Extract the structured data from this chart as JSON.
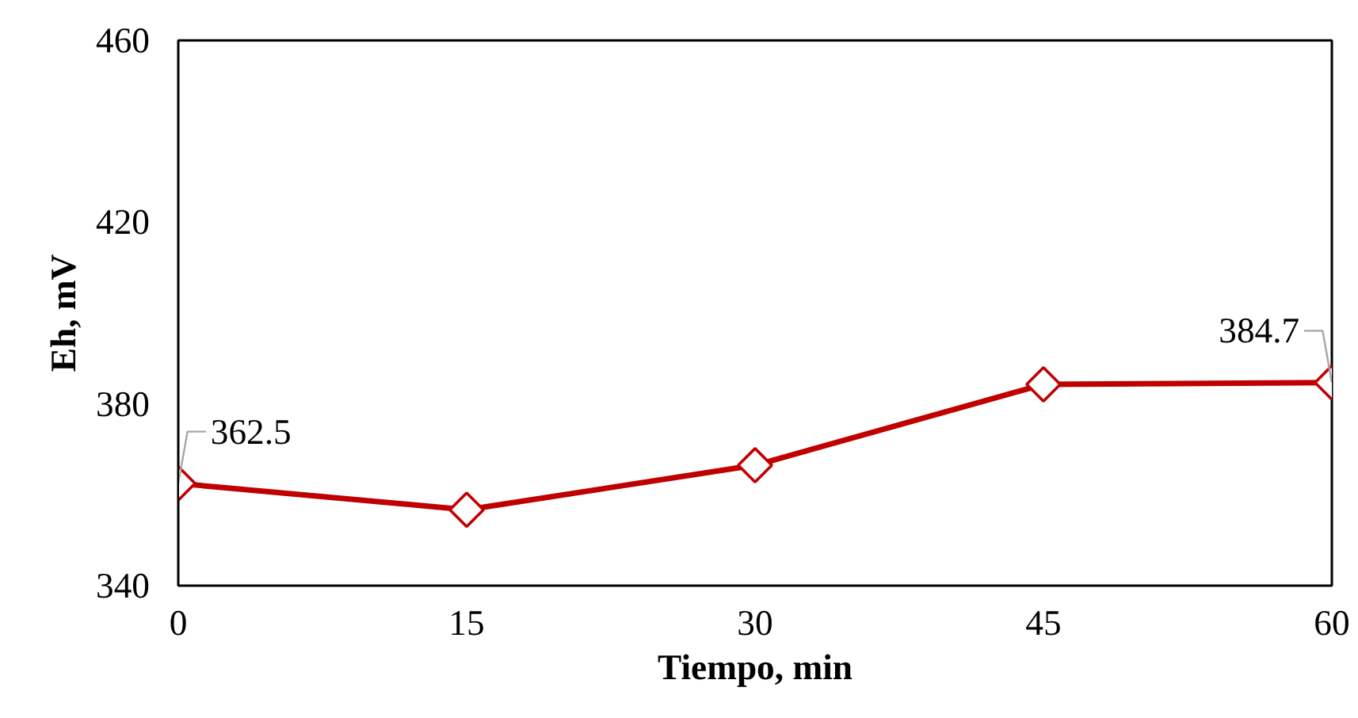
{
  "chart_data": {
    "type": "line",
    "xlabel": "Tiempo, min",
    "ylabel": "Eh, mV",
    "x": [
      0,
      15,
      30,
      45,
      60
    ],
    "series": [
      {
        "color": "#c00000",
        "values": [
          362.5,
          356.7,
          366.5,
          384.3,
          384.7
        ],
        "value_labels": [
          "362.5",
          null,
          null,
          null,
          "384.7"
        ]
      }
    ],
    "xlim": [
      0,
      60
    ],
    "xticks": [
      0,
      15,
      30,
      45,
      60
    ],
    "ylim": [
      340,
      460
    ],
    "yticks": [
      340,
      380,
      420,
      460
    ],
    "marker": "diamond",
    "line_style": "solid",
    "grid": false
  }
}
